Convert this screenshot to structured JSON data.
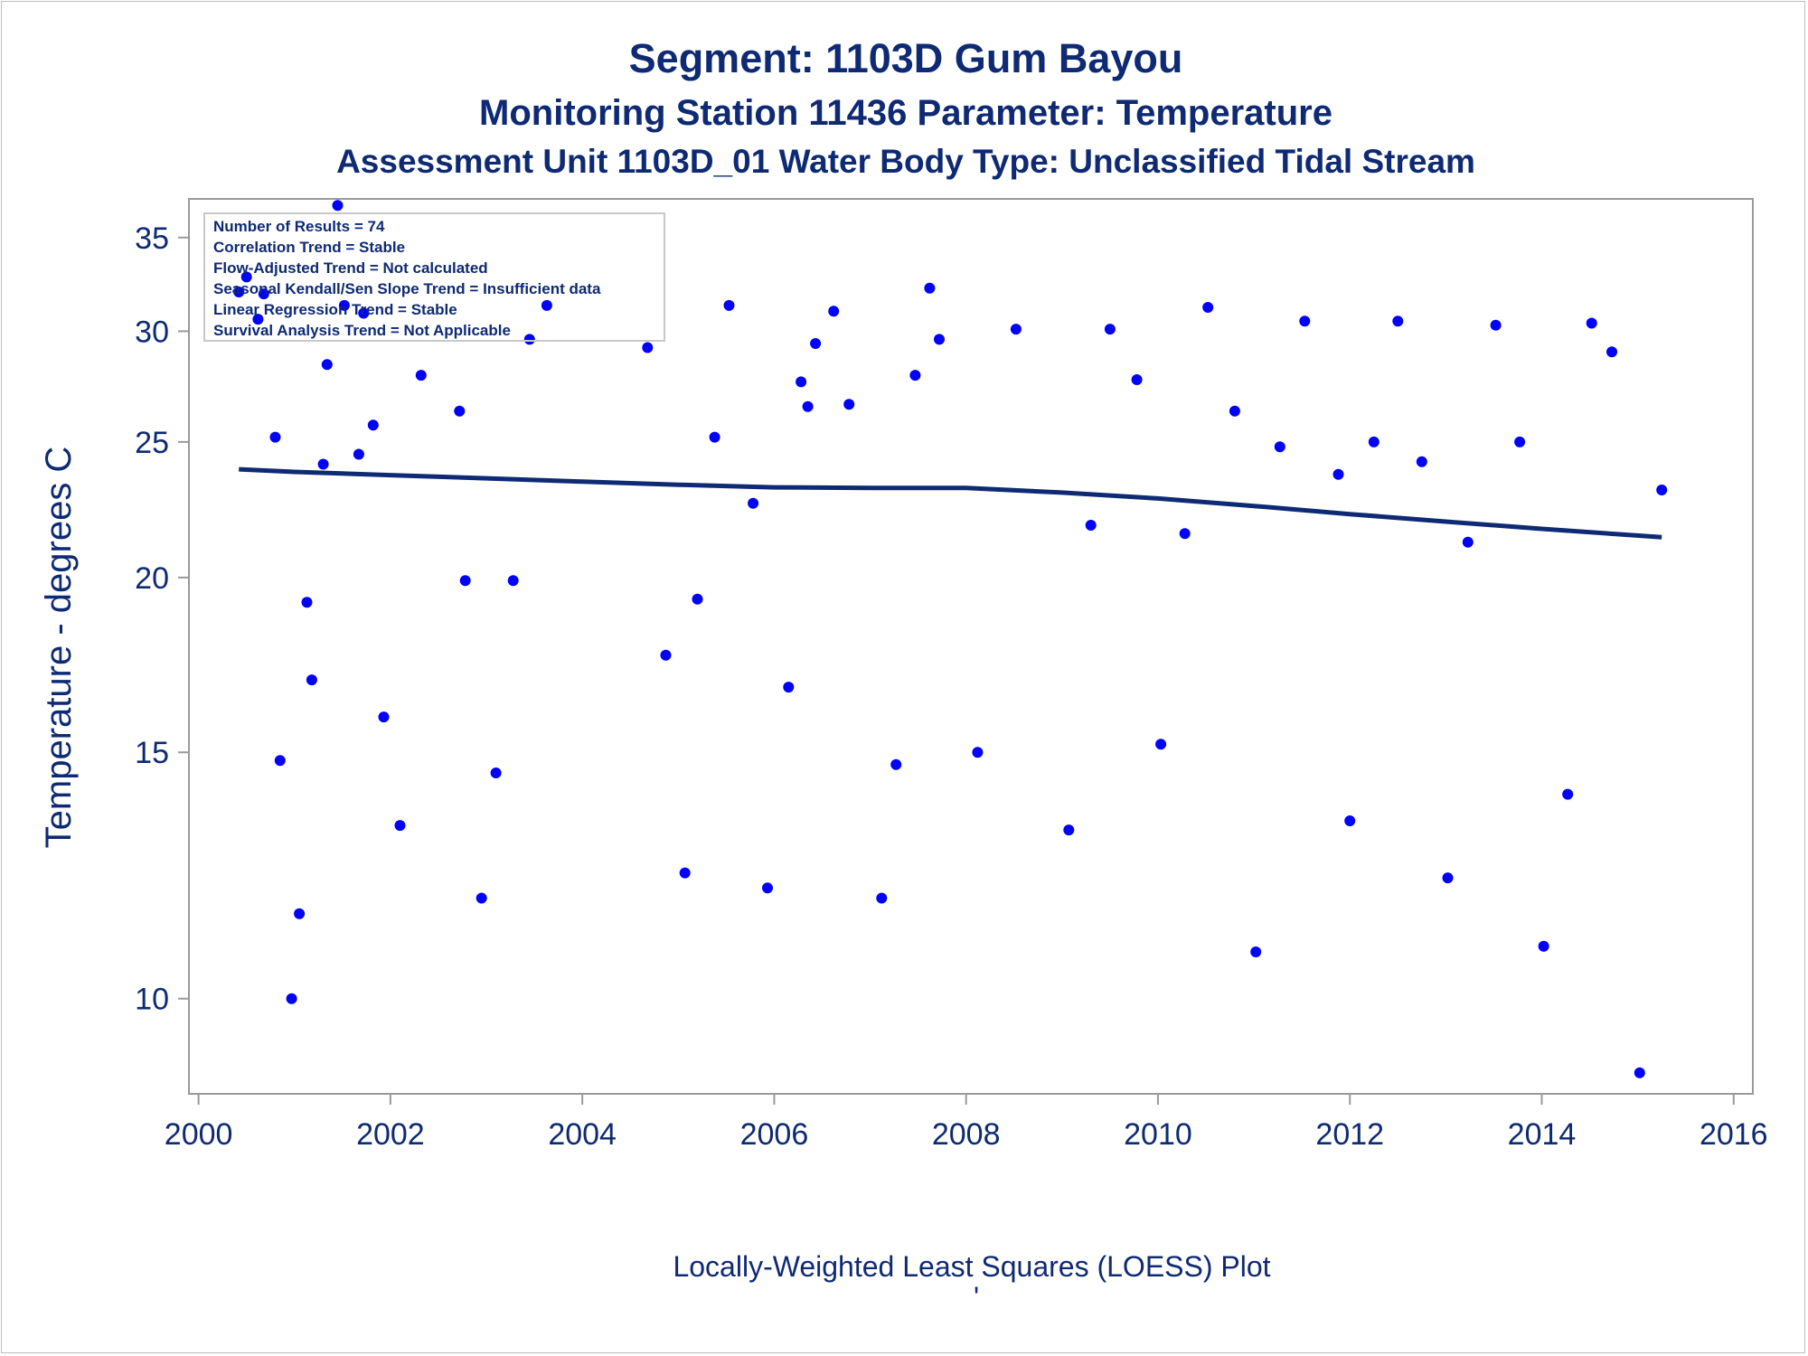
{
  "titles": {
    "title": "Segment: 1103D  Gum Bayou",
    "subtitle": "Monitoring Station 11436 Parameter: Temperature",
    "subtitle2": "Assessment Unit 1103D_01   Water Body Type: Unclassified Tidal Stream",
    "footnote": "Locally-Weighted Least Squares (LOESS) Plot",
    "footnote_mark": "'"
  },
  "inset": {
    "lines": [
      "Number of Results = 74",
      "Correlation Trend = Stable",
      "Flow-Adjusted Trend = Not calculated",
      "Seasonal Kendall/Sen Slope Trend = Insufficient data",
      "Linear Regression Trend = Stable",
      "Survival Analysis Trend = Not Applicable"
    ]
  },
  "colors": {
    "text": "#0e2a74",
    "points": "#0000ff",
    "loess": "#0e2a74",
    "axis": "#9a9a9a"
  },
  "chart_data": {
    "type": "scatter",
    "title": "Segment: 1103D  Gum Bayou",
    "xlabel": "",
    "ylabel": "Temperature - degrees C",
    "x_ticks": [
      2000,
      2002,
      2004,
      2006,
      2008,
      2010,
      2012,
      2014,
      2016
    ],
    "y_ticks": [
      10,
      15,
      20,
      25,
      30,
      35
    ],
    "y_scale": "log",
    "xlim": [
      1999.9,
      2016.2
    ],
    "ylim": [
      8.55,
      37.3
    ],
    "grid": false,
    "series": [
      {
        "type": "scatter",
        "points": [
          [
            2000.42,
            32.0
          ],
          [
            2000.5,
            32.8
          ],
          [
            2000.62,
            30.6
          ],
          [
            2000.68,
            31.9
          ],
          [
            2000.8,
            25.2
          ],
          [
            2000.85,
            14.8
          ],
          [
            2000.97,
            10.0
          ],
          [
            2001.05,
            11.5
          ],
          [
            2001.13,
            19.2
          ],
          [
            2001.18,
            16.9
          ],
          [
            2001.3,
            24.1
          ],
          [
            2001.34,
            28.4
          ],
          [
            2001.45,
            36.9
          ],
          [
            2001.52,
            31.3
          ],
          [
            2001.67,
            24.5
          ],
          [
            2001.72,
            30.9
          ],
          [
            2001.82,
            25.7
          ],
          [
            2001.93,
            15.9
          ],
          [
            2002.1,
            13.3
          ],
          [
            2002.32,
            27.9
          ],
          [
            2002.72,
            26.3
          ],
          [
            2002.78,
            19.9
          ],
          [
            2002.95,
            11.8
          ],
          [
            2003.1,
            14.5
          ],
          [
            2003.28,
            19.9
          ],
          [
            2003.45,
            29.6
          ],
          [
            2003.63,
            31.3
          ],
          [
            2004.68,
            29.2
          ],
          [
            2004.87,
            17.6
          ],
          [
            2005.07,
            12.3
          ],
          [
            2005.2,
            19.3
          ],
          [
            2005.38,
            25.2
          ],
          [
            2005.53,
            31.3
          ],
          [
            2005.78,
            22.6
          ],
          [
            2005.93,
            12.0
          ],
          [
            2006.15,
            16.7
          ],
          [
            2006.28,
            27.6
          ],
          [
            2006.35,
            26.5
          ],
          [
            2006.43,
            29.4
          ],
          [
            2006.62,
            31.0
          ],
          [
            2006.78,
            26.6
          ],
          [
            2007.12,
            11.8
          ],
          [
            2007.27,
            14.7
          ],
          [
            2007.47,
            27.9
          ],
          [
            2007.62,
            32.2
          ],
          [
            2007.72,
            29.6
          ],
          [
            2008.12,
            15.0
          ],
          [
            2008.52,
            30.1
          ],
          [
            2009.07,
            13.2
          ],
          [
            2009.3,
            21.8
          ],
          [
            2009.5,
            30.1
          ],
          [
            2009.78,
            27.7
          ],
          [
            2010.03,
            15.2
          ],
          [
            2010.28,
            21.5
          ],
          [
            2010.52,
            31.2
          ],
          [
            2010.8,
            26.3
          ],
          [
            2011.02,
            10.8
          ],
          [
            2011.27,
            24.8
          ],
          [
            2011.53,
            30.5
          ],
          [
            2011.88,
            23.7
          ],
          [
            2012.0,
            13.4
          ],
          [
            2012.25,
            25.0
          ],
          [
            2012.5,
            30.5
          ],
          [
            2012.75,
            24.2
          ],
          [
            2013.02,
            12.2
          ],
          [
            2013.23,
            21.2
          ],
          [
            2013.52,
            30.3
          ],
          [
            2013.77,
            25.0
          ],
          [
            2014.02,
            10.9
          ],
          [
            2014.27,
            14.0
          ],
          [
            2014.52,
            30.4
          ],
          [
            2014.73,
            29.0
          ],
          [
            2015.02,
            8.85
          ],
          [
            2015.25,
            23.1
          ]
        ]
      },
      {
        "type": "line",
        "points": [
          [
            2000.42,
            23.9
          ],
          [
            2001.0,
            23.8
          ],
          [
            2002.0,
            23.67
          ],
          [
            2003.0,
            23.55
          ],
          [
            2004.0,
            23.42
          ],
          [
            2005.0,
            23.3
          ],
          [
            2006.0,
            23.2
          ],
          [
            2007.0,
            23.18
          ],
          [
            2008.0,
            23.18
          ],
          [
            2009.0,
            23.0
          ],
          [
            2010.0,
            22.78
          ],
          [
            2011.0,
            22.5
          ],
          [
            2012.0,
            22.2
          ],
          [
            2013.0,
            21.93
          ],
          [
            2014.0,
            21.67
          ],
          [
            2015.25,
            21.37
          ]
        ]
      }
    ]
  }
}
